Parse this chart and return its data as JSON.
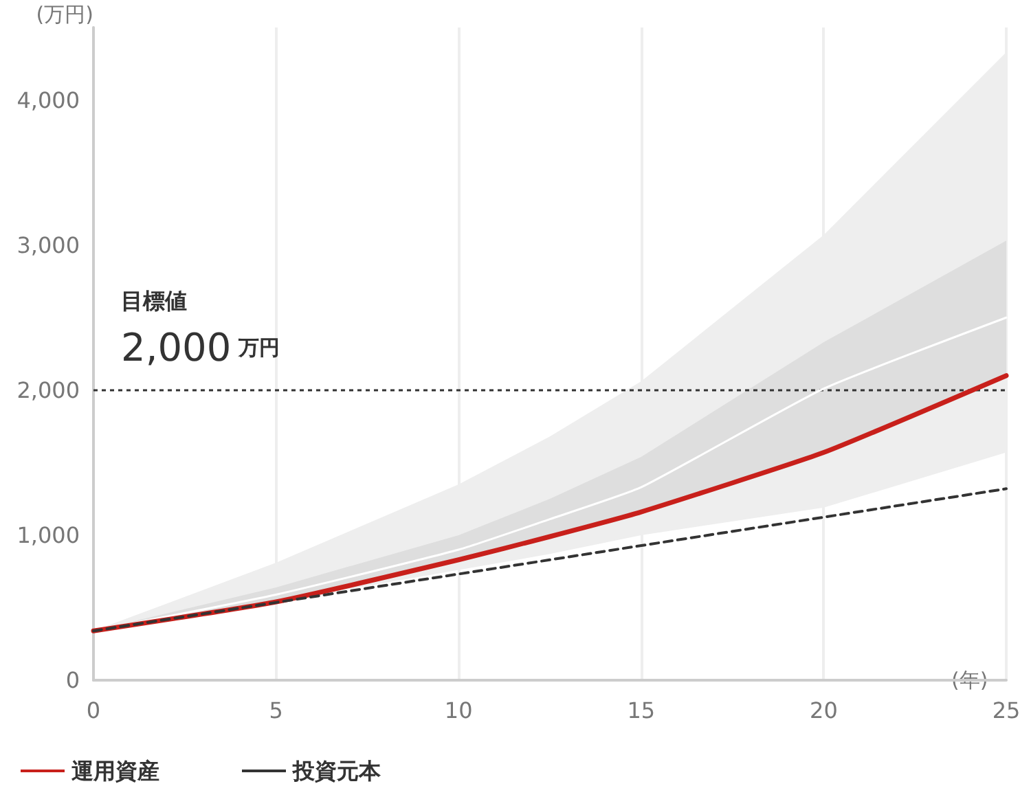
{
  "chart_data": {
    "type": "line",
    "xlabel": "(年)",
    "ylabel": "(万円)",
    "x": [
      0,
      5,
      10,
      12.5,
      15,
      20,
      25
    ],
    "series": [
      {
        "name": null,
        "color": "#ffffff",
        "values": [
          340,
          590,
          900,
          1110,
          1330,
          2010,
          2500
        ],
        "lower": [
          340,
          540,
          830,
          990,
          1160,
          1570,
          2100
        ],
        "upper": [
          340,
          640,
          1000,
          1250,
          1540,
          2330,
          3030
        ]
      },
      {
        "name": "運用資産",
        "color": "#c8201b",
        "values": [
          340,
          540,
          830,
          990,
          1160,
          1570,
          2100
        ],
        "lower": [
          340,
          540,
          760,
          870,
          1000,
          1190,
          1570
        ],
        "upper": [
          340,
          810,
          1350,
          1680,
          2060,
          3070,
          4330
        ]
      },
      {
        "name": "投資元本",
        "color": "#333333",
        "type": "line",
        "line_style": "dashed",
        "x": [
          0,
          25
        ],
        "values": [
          340,
          1320
        ]
      }
    ],
    "xlim": [
      0,
      25
    ],
    "xticks": [
      0,
      5,
      10,
      15,
      20,
      25
    ],
    "ylim": [
      0,
      4500
    ],
    "yticks": [
      0,
      {
        "value": 1000,
        "label": "1,000"
      },
      {
        "value": 2000,
        "label": "2,000"
      },
      {
        "value": 3000,
        "label": "3,000"
      },
      {
        "value": 4000,
        "label": "4,000"
      }
    ],
    "ref_lines": [
      {
        "axis": "y",
        "value": 2000,
        "label": "目標値\n2,000 万円",
        "color": "#333333",
        "line_style": "dotted"
      }
    ],
    "grid": "x",
    "legend": "bottom left",
    "marker": "none"
  }
}
